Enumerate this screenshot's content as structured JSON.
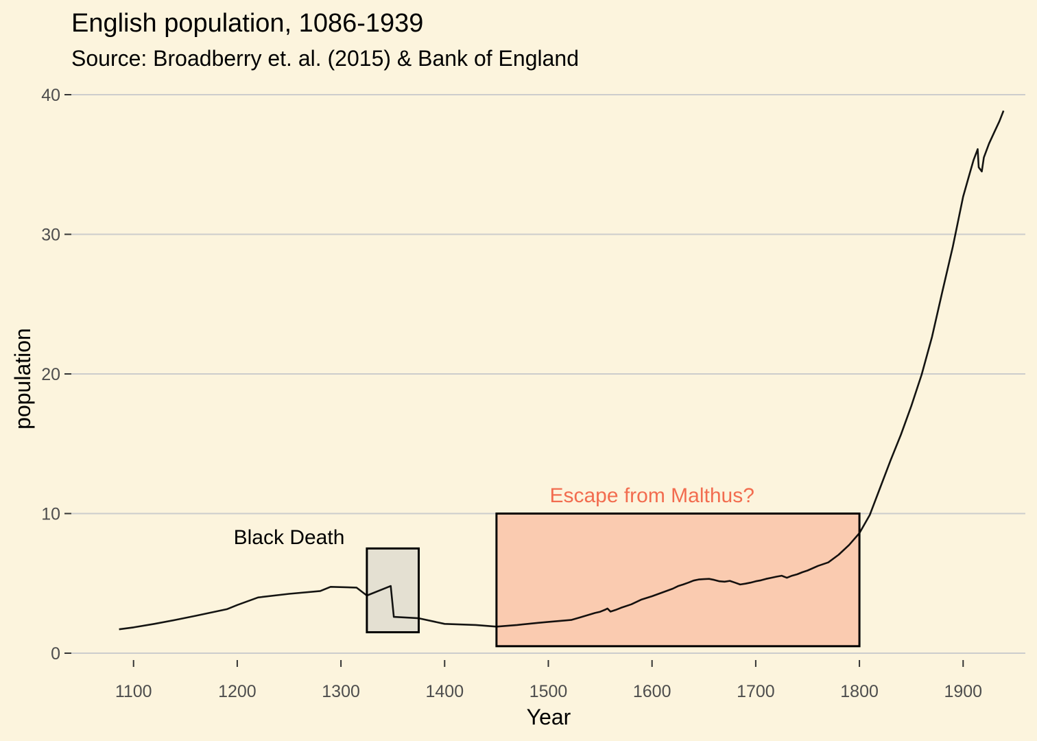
{
  "chart_data": {
    "type": "line",
    "title": "English population, 1086-1939",
    "subtitle": "Source: Broadberry et. al. (2015) & Bank of England",
    "xlabel": "Year",
    "ylabel": "population",
    "xlim": [
      1040,
      1960
    ],
    "ylim": [
      0,
      40
    ],
    "x_ticks": [
      1100,
      1200,
      1300,
      1400,
      1500,
      1600,
      1700,
      1800,
      1900
    ],
    "y_ticks": [
      0,
      10,
      20,
      30,
      40
    ],
    "grid": "horizontal",
    "colors": {
      "background": "#fcf4dd",
      "grid": "#cccccc",
      "line": "#000000",
      "black_death_fill": "#e4e0d2",
      "malthus_fill": "#facbb0",
      "malthus_label": "#f26c4f"
    },
    "series": [
      {
        "x": [
          1086,
          1100,
          1120,
          1140,
          1160,
          1190,
          1200,
          1220,
          1250,
          1280,
          1290,
          1315,
          1325,
          1348,
          1351,
          1375,
          1400,
          1430,
          1450,
          1470,
          1490,
          1500,
          1522,
          1530,
          1545,
          1550,
          1555,
          1557,
          1560,
          1565,
          1570,
          1580,
          1590,
          1600,
          1610,
          1620,
          1625,
          1630,
          1635,
          1640,
          1645,
          1650,
          1655,
          1660,
          1665,
          1670,
          1675,
          1680,
          1685,
          1690,
          1695,
          1700,
          1705,
          1710,
          1715,
          1720,
          1725,
          1730,
          1735,
          1740,
          1745,
          1750,
          1760,
          1770,
          1780,
          1790,
          1800,
          1810,
          1820,
          1830,
          1840,
          1850,
          1860,
          1870,
          1880,
          1890,
          1900,
          1905,
          1910,
          1914,
          1915,
          1918,
          1920,
          1925,
          1930,
          1935,
          1939
        ],
        "values": [
          1.71,
          1.85,
          2.1,
          2.38,
          2.68,
          3.15,
          3.45,
          3.99,
          4.25,
          4.45,
          4.75,
          4.7,
          4.13,
          4.81,
          2.6,
          2.5,
          2.1,
          2.02,
          1.9,
          2.02,
          2.17,
          2.24,
          2.38,
          2.55,
          2.88,
          2.97,
          3.12,
          3.2,
          2.98,
          3.1,
          3.25,
          3.5,
          3.85,
          4.08,
          4.35,
          4.62,
          4.8,
          4.92,
          5.05,
          5.2,
          5.28,
          5.3,
          5.32,
          5.25,
          5.15,
          5.12,
          5.18,
          5.05,
          4.92,
          4.98,
          5.05,
          5.15,
          5.22,
          5.32,
          5.4,
          5.48,
          5.55,
          5.4,
          5.55,
          5.65,
          5.8,
          5.92,
          6.25,
          6.5,
          7.05,
          7.75,
          8.6,
          9.9,
          11.85,
          13.8,
          15.65,
          17.7,
          19.95,
          22.65,
          25.9,
          29.1,
          32.7,
          34.0,
          35.3,
          36.1,
          34.8,
          34.5,
          35.5,
          36.5,
          37.3,
          38.1,
          38.85
        ]
      }
    ],
    "annotations": [
      {
        "label": "Black Death",
        "x0": 1325,
        "x1": 1375,
        "y0": 1.5,
        "y1": 7.5,
        "label_x": 1250,
        "label_y": 8.3
      },
      {
        "label": "Escape from Malthus?",
        "x0": 1450,
        "x1": 1800,
        "y0": 0.5,
        "y1": 10,
        "label_x": 1600,
        "label_y": 11.3
      }
    ]
  }
}
